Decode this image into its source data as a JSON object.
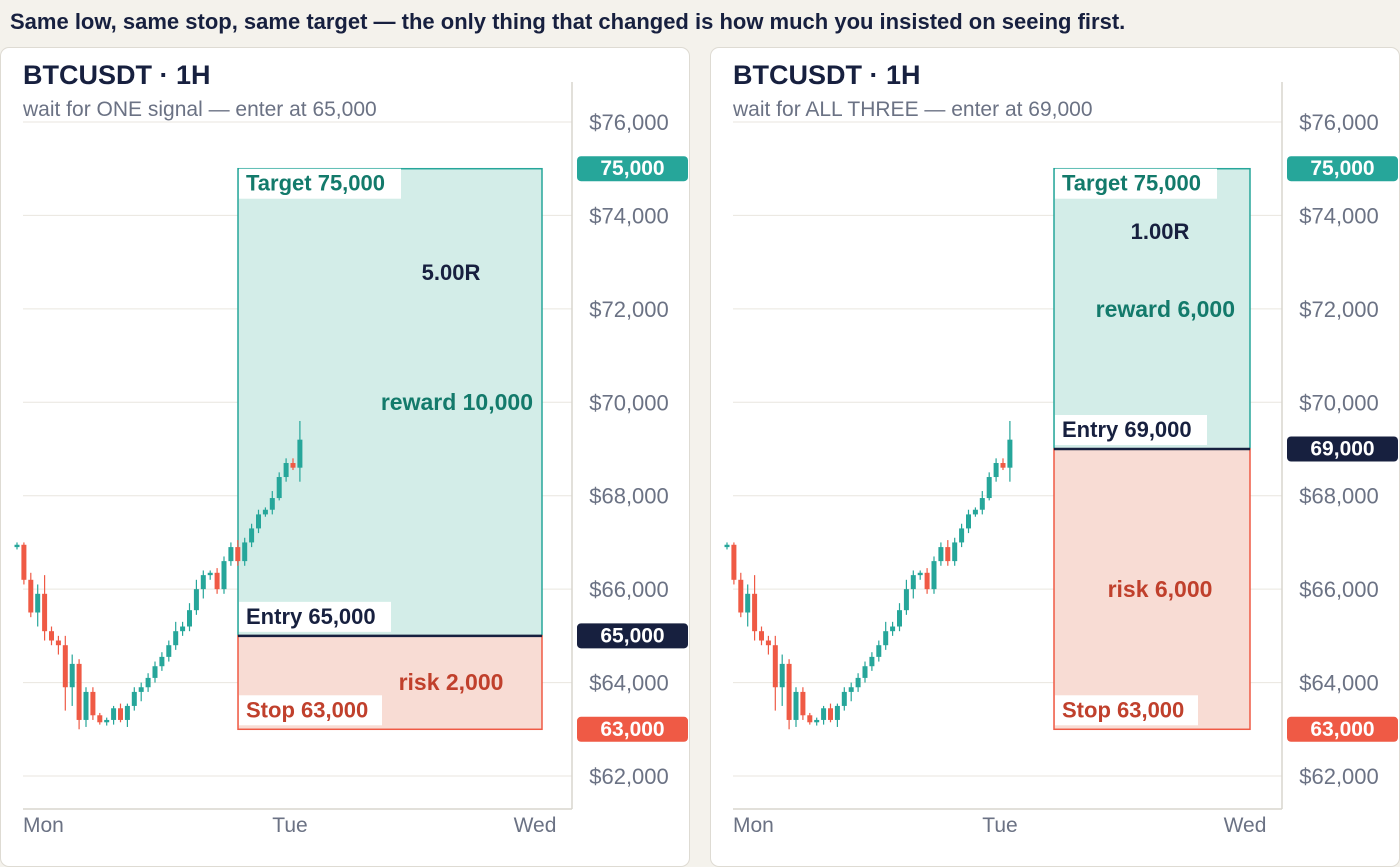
{
  "headline": "Same low, same stop, same target — the only thing that changed is how much you insisted on seeing first.",
  "colors": {
    "up": "#26a69a",
    "down": "#ef5a45",
    "navy": "#17203f",
    "reward_fill": "#d3ede8",
    "risk_fill": "#f8dcd4",
    "reward_text": "#137a6b",
    "risk_text": "#c0402c",
    "grid": "#e9e6df",
    "axis_text": "#6b7284"
  },
  "chart_data": [
    {
      "type": "candlestick",
      "title": "BTCUSDT · 1H",
      "subtitle": "wait for ONE signal — enter at 65,000",
      "x_ticks": [
        "Mon",
        "Tue",
        "Wed"
      ],
      "y_ticks": [
        "$62,000",
        "$64,000",
        "$66,000",
        "$68,000",
        "$70,000",
        "$72,000",
        "$74,000",
        "$76,000"
      ],
      "ylim": [
        61400,
        77000
      ],
      "entry": 65000,
      "stop": 63000,
      "target": 75000,
      "entry_tag": "65,000",
      "stop_tag": "63,000",
      "target_tag": "75,000",
      "entry_label": "Entry 65,000",
      "stop_label": "Stop 63,000",
      "target_label": "Target 75,000",
      "reward_label": "reward 10,000",
      "risk_label": "risk 2,000",
      "ratio_label": "5.00R",
      "candles": [
        {
          "o": 66900,
          "h": 67000,
          "l": 66850,
          "c": 66950
        },
        {
          "o": 66950,
          "h": 67000,
          "l": 66100,
          "c": 66200
        },
        {
          "o": 66200,
          "h": 66350,
          "l": 65400,
          "c": 65500
        },
        {
          "o": 65500,
          "h": 66100,
          "l": 65200,
          "c": 65900
        },
        {
          "o": 65900,
          "h": 66300,
          "l": 64900,
          "c": 65100
        },
        {
          "o": 65100,
          "h": 65200,
          "l": 64800,
          "c": 64900
        },
        {
          "o": 64900,
          "h": 65000,
          "l": 64600,
          "c": 64800
        },
        {
          "o": 64800,
          "h": 65000,
          "l": 63400,
          "c": 63900
        },
        {
          "o": 63900,
          "h": 64600,
          "l": 63500,
          "c": 64400
        },
        {
          "o": 64400,
          "h": 64500,
          "l": 63000,
          "c": 63200
        },
        {
          "o": 63200,
          "h": 63900,
          "l": 63050,
          "c": 63800
        },
        {
          "o": 63800,
          "h": 63900,
          "l": 63200,
          "c": 63300
        },
        {
          "o": 63300,
          "h": 63350,
          "l": 63100,
          "c": 63150
        },
        {
          "o": 63150,
          "h": 63250,
          "l": 63080,
          "c": 63200
        },
        {
          "o": 63200,
          "h": 63500,
          "l": 63100,
          "c": 63450
        },
        {
          "o": 63450,
          "h": 63550,
          "l": 63150,
          "c": 63200
        },
        {
          "o": 63200,
          "h": 63550,
          "l": 63050,
          "c": 63500
        },
        {
          "o": 63500,
          "h": 63900,
          "l": 63400,
          "c": 63800
        },
        {
          "o": 63800,
          "h": 64000,
          "l": 63600,
          "c": 63900
        },
        {
          "o": 63900,
          "h": 64200,
          "l": 63800,
          "c": 64100
        },
        {
          "o": 64100,
          "h": 64450,
          "l": 64000,
          "c": 64350
        },
        {
          "o": 64350,
          "h": 64650,
          "l": 64250,
          "c": 64550
        },
        {
          "o": 64550,
          "h": 64900,
          "l": 64450,
          "c": 64800
        },
        {
          "o": 64800,
          "h": 65300,
          "l": 64700,
          "c": 65100
        },
        {
          "o": 65100,
          "h": 65300,
          "l": 65000,
          "c": 65200
        },
        {
          "o": 65200,
          "h": 65700,
          "l": 65100,
          "c": 65550
        },
        {
          "o": 65550,
          "h": 66200,
          "l": 65450,
          "c": 66000
        },
        {
          "o": 66000,
          "h": 66400,
          "l": 65800,
          "c": 66300
        },
        {
          "o": 66300,
          "h": 66400,
          "l": 66200,
          "c": 66350
        },
        {
          "o": 66350,
          "h": 66450,
          "l": 65900,
          "c": 66000
        },
        {
          "o": 66000,
          "h": 66700,
          "l": 65900,
          "c": 66600
        },
        {
          "o": 66600,
          "h": 67000,
          "l": 66500,
          "c": 66900
        },
        {
          "o": 66900,
          "h": 67050,
          "l": 66500,
          "c": 66600
        },
        {
          "o": 66600,
          "h": 67100,
          "l": 66500,
          "c": 67000
        },
        {
          "o": 67000,
          "h": 67400,
          "l": 66900,
          "c": 67300
        },
        {
          "o": 67300,
          "h": 67700,
          "l": 67200,
          "c": 67600
        },
        {
          "o": 67600,
          "h": 67750,
          "l": 67550,
          "c": 67700
        },
        {
          "o": 67700,
          "h": 68100,
          "l": 67600,
          "c": 67950
        },
        {
          "o": 67950,
          "h": 68500,
          "l": 67900,
          "c": 68400
        },
        {
          "o": 68400,
          "h": 68800,
          "l": 68300,
          "c": 68700
        },
        {
          "o": 68700,
          "h": 68800,
          "l": 68550,
          "c": 68600
        },
        {
          "o": 68600,
          "h": 69600,
          "l": 68300,
          "c": 69200
        }
      ]
    },
    {
      "type": "candlestick",
      "title": "BTCUSDT · 1H",
      "subtitle": "wait for ALL THREE — enter at 69,000",
      "x_ticks": [
        "Mon",
        "Tue",
        "Wed"
      ],
      "y_ticks": [
        "$62,000",
        "$64,000",
        "$66,000",
        "$68,000",
        "$70,000",
        "$72,000",
        "$74,000",
        "$76,000"
      ],
      "ylim": [
        61400,
        77000
      ],
      "entry": 69000,
      "stop": 63000,
      "target": 75000,
      "entry_tag": "69,000",
      "stop_tag": "63,000",
      "target_tag": "75,000",
      "entry_label": "Entry 69,000",
      "stop_label": "Stop 63,000",
      "target_label": "Target 75,000",
      "reward_label": "reward 6,000",
      "risk_label": "risk 6,000",
      "ratio_label": "1.00R",
      "candles": [
        {
          "o": 66900,
          "h": 67000,
          "l": 66850,
          "c": 66950
        },
        {
          "o": 66950,
          "h": 67000,
          "l": 66100,
          "c": 66200
        },
        {
          "o": 66200,
          "h": 66350,
          "l": 65400,
          "c": 65500
        },
        {
          "o": 65500,
          "h": 66100,
          "l": 65200,
          "c": 65900
        },
        {
          "o": 65900,
          "h": 66300,
          "l": 64900,
          "c": 65100
        },
        {
          "o": 65100,
          "h": 65200,
          "l": 64800,
          "c": 64900
        },
        {
          "o": 64900,
          "h": 65000,
          "l": 64600,
          "c": 64800
        },
        {
          "o": 64800,
          "h": 65000,
          "l": 63400,
          "c": 63900
        },
        {
          "o": 63900,
          "h": 64600,
          "l": 63500,
          "c": 64400
        },
        {
          "o": 64400,
          "h": 64500,
          "l": 63000,
          "c": 63200
        },
        {
          "o": 63200,
          "h": 63900,
          "l": 63050,
          "c": 63800
        },
        {
          "o": 63800,
          "h": 63900,
          "l": 63200,
          "c": 63300
        },
        {
          "o": 63300,
          "h": 63350,
          "l": 63100,
          "c": 63150
        },
        {
          "o": 63150,
          "h": 63250,
          "l": 63080,
          "c": 63200
        },
        {
          "o": 63200,
          "h": 63500,
          "l": 63100,
          "c": 63450
        },
        {
          "o": 63450,
          "h": 63550,
          "l": 63150,
          "c": 63200
        },
        {
          "o": 63200,
          "h": 63550,
          "l": 63050,
          "c": 63500
        },
        {
          "o": 63500,
          "h": 63900,
          "l": 63400,
          "c": 63800
        },
        {
          "o": 63800,
          "h": 64000,
          "l": 63600,
          "c": 63900
        },
        {
          "o": 63900,
          "h": 64200,
          "l": 63800,
          "c": 64100
        },
        {
          "o": 64100,
          "h": 64450,
          "l": 64000,
          "c": 64350
        },
        {
          "o": 64350,
          "h": 64650,
          "l": 64250,
          "c": 64550
        },
        {
          "o": 64550,
          "h": 64900,
          "l": 64450,
          "c": 64800
        },
        {
          "o": 64800,
          "h": 65300,
          "l": 64700,
          "c": 65100
        },
        {
          "o": 65100,
          "h": 65300,
          "l": 65000,
          "c": 65200
        },
        {
          "o": 65200,
          "h": 65700,
          "l": 65100,
          "c": 65550
        },
        {
          "o": 65550,
          "h": 66200,
          "l": 65450,
          "c": 66000
        },
        {
          "o": 66000,
          "h": 66400,
          "l": 65800,
          "c": 66300
        },
        {
          "o": 66300,
          "h": 66400,
          "l": 66200,
          "c": 66350
        },
        {
          "o": 66350,
          "h": 66450,
          "l": 65900,
          "c": 66000
        },
        {
          "o": 66000,
          "h": 66700,
          "l": 65900,
          "c": 66600
        },
        {
          "o": 66600,
          "h": 67000,
          "l": 66500,
          "c": 66900
        },
        {
          "o": 66900,
          "h": 67050,
          "l": 66500,
          "c": 66600
        },
        {
          "o": 66600,
          "h": 67100,
          "l": 66500,
          "c": 67000
        },
        {
          "o": 67000,
          "h": 67400,
          "l": 66900,
          "c": 67300
        },
        {
          "o": 67300,
          "h": 67700,
          "l": 67200,
          "c": 67600
        },
        {
          "o": 67600,
          "h": 67750,
          "l": 67550,
          "c": 67700
        },
        {
          "o": 67700,
          "h": 68100,
          "l": 67600,
          "c": 67950
        },
        {
          "o": 67950,
          "h": 68500,
          "l": 67900,
          "c": 68400
        },
        {
          "o": 68400,
          "h": 68800,
          "l": 68300,
          "c": 68700
        },
        {
          "o": 68700,
          "h": 68800,
          "l": 68550,
          "c": 68600
        },
        {
          "o": 68600,
          "h": 69600,
          "l": 68300,
          "c": 69200
        }
      ]
    }
  ]
}
